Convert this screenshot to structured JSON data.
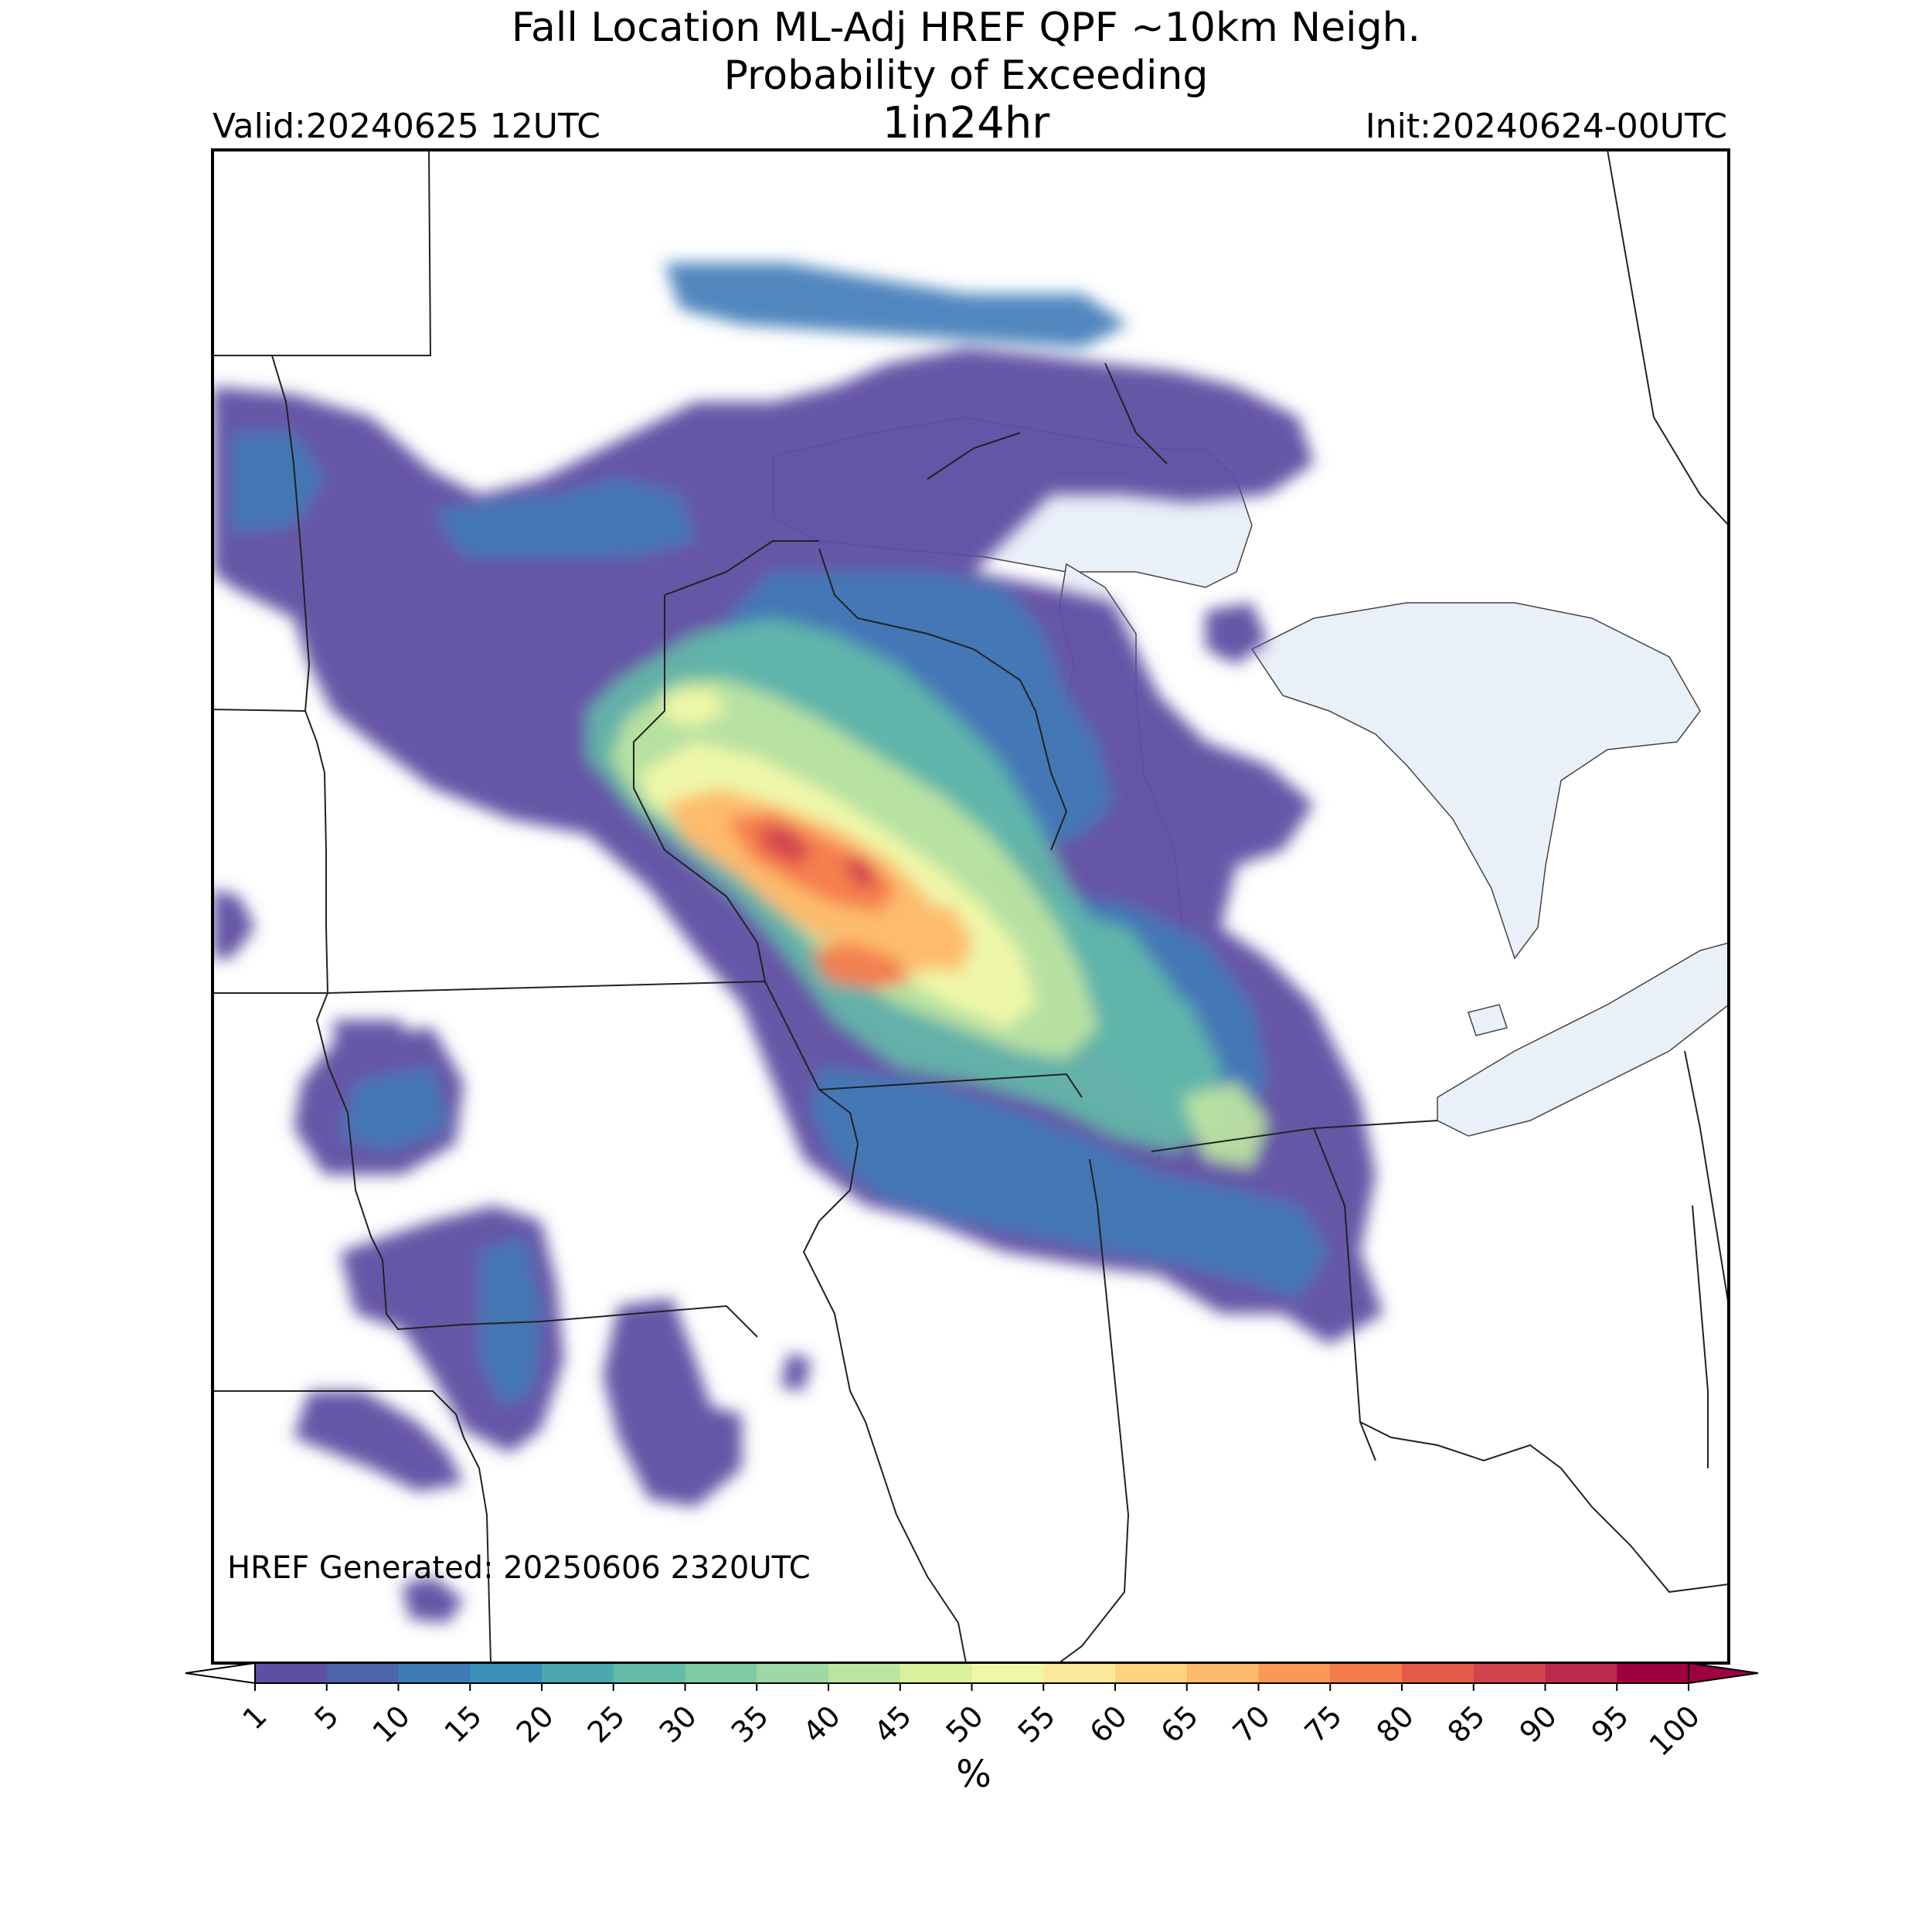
{
  "header": {
    "title_line1": "Fall Location ML-Adj HREF QPF ~10km Neigh.",
    "title_line2": "Probability of Exceeding",
    "title_line3": "1in24hr",
    "valid": "Valid:20240625 12UTC",
    "init": "Init:20240624-00UTC"
  },
  "footer": {
    "generated": "HREF Generated: 20250606 2320UTC"
  },
  "colorbar": {
    "unit": "%",
    "ticks": [
      "1",
      "5",
      "10",
      "15",
      "20",
      "25",
      "30",
      "35",
      "40",
      "45",
      "50",
      "55",
      "60",
      "65",
      "70",
      "75",
      "80",
      "85",
      "90",
      "95",
      "100"
    ],
    "colors": [
      "#5e4fa2",
      "#4e63ad",
      "#3f7ab8",
      "#3990b8",
      "#4aa6b0",
      "#62bba8",
      "#7fcba4",
      "#9fd8a4",
      "#bee5a0",
      "#daf09a",
      "#f0f8a8",
      "#fce89a",
      "#fdd380",
      "#fdb869",
      "#fa9858",
      "#f47b4c",
      "#e45c48",
      "#d1434d",
      "#bb2b4b",
      "#9e0142"
    ],
    "extend_low": "#ffffff",
    "extend_high": "#9e0142"
  },
  "map": {
    "lake_color": "#e8eef7",
    "border_color": "#222222"
  }
}
